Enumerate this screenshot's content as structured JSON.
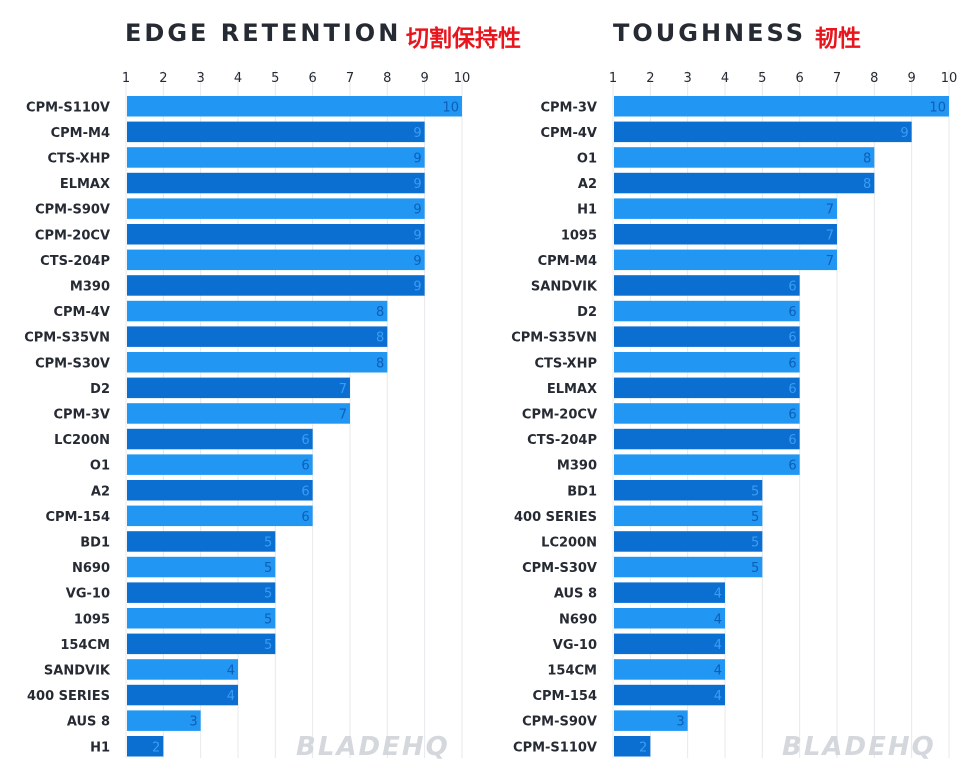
{
  "chart_data": [
    {
      "type": "bar",
      "orientation": "horizontal",
      "title": "EDGE RETENTION",
      "title_cn": "切割保持性",
      "xlim": [
        1,
        10
      ],
      "ticks": [
        1,
        2,
        3,
        4,
        5,
        6,
        7,
        8,
        9,
        10
      ],
      "grid": true,
      "categories": [
        "CPM-S110V",
        "CPM-M4",
        "CTS-XHP",
        "ELMAX",
        "CPM-S90V",
        "CPM-20CV",
        "CTS-204P",
        "M390",
        "CPM-4V",
        "CPM-S35VN",
        "CPM-S30V",
        "D2",
        "CPM-3V",
        "LC200N",
        "O1",
        "A2",
        "CPM-154",
        "BD1",
        "N690",
        "VG-10",
        "1095",
        "154CM",
        "SANDVIK",
        "400 SERIES",
        "AUS 8",
        "H1"
      ],
      "values": [
        10,
        9,
        9,
        9,
        9,
        9,
        9,
        9,
        8,
        8,
        8,
        7,
        7,
        6,
        6,
        6,
        6,
        5,
        5,
        5,
        5,
        5,
        4,
        4,
        3,
        2
      ]
    },
    {
      "type": "bar",
      "orientation": "horizontal",
      "title": "TOUGHNESS",
      "title_cn": "韧性",
      "xlim": [
        1,
        10
      ],
      "ticks": [
        1,
        2,
        3,
        4,
        5,
        6,
        7,
        8,
        9,
        10
      ],
      "grid": true,
      "categories": [
        "CPM-3V",
        "CPM-4V",
        "O1",
        "A2",
        "H1",
        "1095",
        "CPM-M4",
        "SANDVIK",
        "D2",
        "CPM-S35VN",
        "CTS-XHP",
        "ELMAX",
        "CPM-20CV",
        "CTS-204P",
        "M390",
        "BD1",
        "400 SERIES",
        "LC200N",
        "CPM-S30V",
        "AUS 8",
        "N690",
        "VG-10",
        "154CM",
        "CPM-154",
        "CPM-S90V",
        "CPM-S110V"
      ],
      "values": [
        10,
        9,
        8,
        8,
        7,
        7,
        7,
        6,
        6,
        6,
        6,
        6,
        6,
        6,
        6,
        5,
        5,
        5,
        5,
        4,
        4,
        4,
        4,
        4,
        3,
        2
      ]
    }
  ],
  "colors": {
    "bar_light": "#2196f3",
    "bar_dark": "#0a6fd1",
    "label_on_light": "#0d5fb8",
    "label_on_dark": "#3b9cf5",
    "text": "#262a33",
    "grid": "#e6e8eb",
    "accent_cn": "#e8151d",
    "watermark": "#d4d8dd"
  },
  "watermark": "BLADEHQ"
}
